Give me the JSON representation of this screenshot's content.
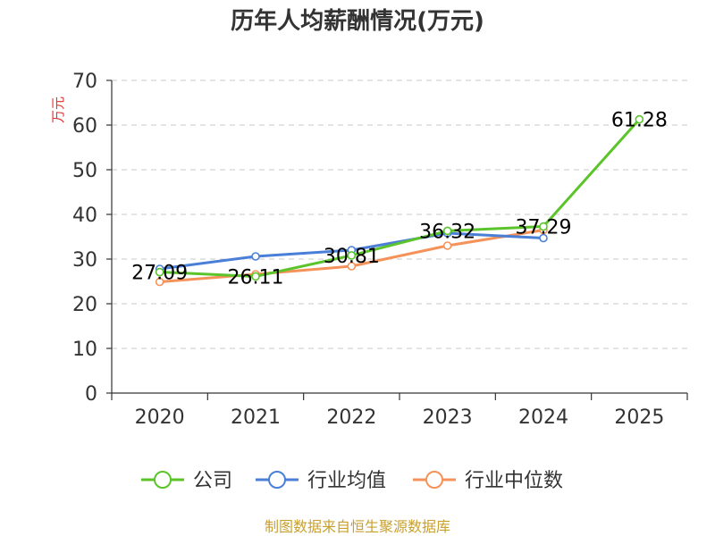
{
  "chart_data": {
    "type": "line",
    "title": "历年人均薪酬情况(万元)",
    "ylabel": "万元",
    "categories": [
      "2020",
      "2021",
      "2022",
      "2023",
      "2024",
      "2025"
    ],
    "ylim": [
      0,
      70
    ],
    "yticks": [
      0,
      10,
      20,
      30,
      40,
      50,
      60,
      70
    ],
    "grid": true,
    "legend_position": "bottom",
    "series": [
      {
        "name": "公司",
        "color": "#5bc42a",
        "values": [
          27.09,
          26.11,
          30.81,
          36.32,
          37.29,
          61.28
        ],
        "labels": [
          "27.09",
          "26.11",
          "30.81",
          "36.32",
          "37.29",
          "61.28"
        ]
      },
      {
        "name": "行业均值",
        "color": "#4a7fd8",
        "values": [
          27.8,
          30.6,
          32.0,
          35.8,
          34.7,
          null
        ]
      },
      {
        "name": "行业中位数",
        "color": "#f5925a",
        "values": [
          24.9,
          26.6,
          28.4,
          33.0,
          36.5,
          null
        ]
      }
    ]
  },
  "source": "制图数据来自恒生聚源数据库"
}
